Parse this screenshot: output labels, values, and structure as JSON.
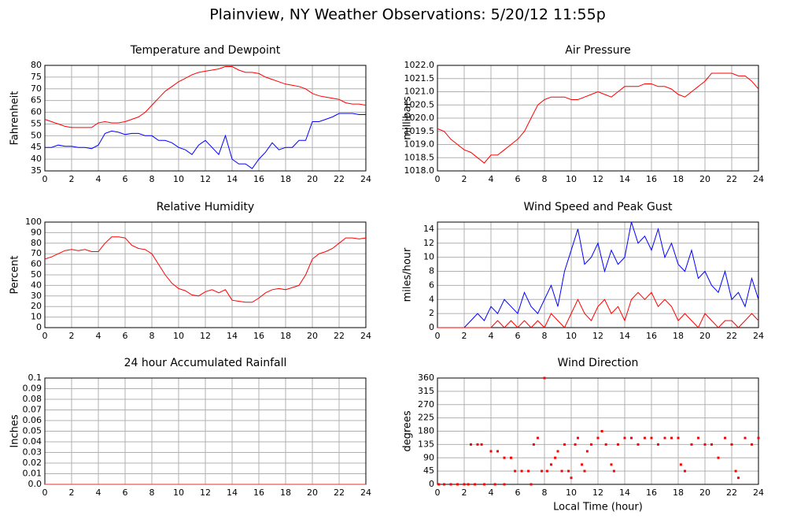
{
  "title": "Plainview, NY Weather Observations: 5/20/12 11:55p",
  "chart_data": [
    {
      "type": "line",
      "title": "Temperature and Dewpoint",
      "ylabel": "Fahrenheit",
      "x": [
        0,
        0.5,
        1,
        1.5,
        2,
        2.5,
        3,
        3.5,
        4,
        4.5,
        5,
        5.5,
        6,
        6.5,
        7,
        7.5,
        8,
        8.5,
        9,
        9.5,
        10,
        10.5,
        11,
        11.5,
        12,
        12.5,
        13,
        13.5,
        14,
        14.5,
        15,
        15.5,
        16,
        16.5,
        17,
        17.5,
        18,
        18.5,
        19,
        19.5,
        20,
        20.5,
        21,
        21.5,
        22,
        22.5,
        23,
        23.5,
        24
      ],
      "series": [
        {
          "color": "#ff0000",
          "values": [
            57,
            56,
            55,
            54,
            53.5,
            53.5,
            53.5,
            53.5,
            55.5,
            56,
            55.5,
            55.5,
            56,
            57,
            58,
            60,
            63,
            66,
            69,
            71,
            73,
            74.5,
            76,
            77,
            77.5,
            78,
            78.5,
            79.5,
            79.5,
            78,
            77,
            77,
            76.5,
            75,
            74,
            73,
            72,
            71.5,
            71,
            70,
            68,
            67,
            66.5,
            66,
            65.5,
            64,
            63.5,
            63.5,
            63
          ]
        },
        {
          "color": "#0000ff",
          "values": [
            45,
            45,
            46,
            45.5,
            45.5,
            45,
            45,
            44.5,
            46,
            51,
            52,
            51.5,
            50.5,
            51,
            51,
            50,
            50,
            48,
            48,
            47,
            45,
            44,
            42,
            46,
            48,
            45,
            42,
            50,
            40,
            38,
            38,
            36,
            40,
            43,
            47,
            44,
            45,
            45,
            48,
            48,
            56,
            56,
            57,
            58,
            59.5,
            59.5,
            59.5,
            59,
            59
          ]
        }
      ],
      "xlim": [
        0,
        24
      ],
      "xticks": [
        0,
        2,
        4,
        6,
        8,
        10,
        12,
        14,
        16,
        18,
        20,
        22,
        24
      ],
      "ylim": [
        35,
        80
      ],
      "yticks": [
        35,
        40,
        45,
        50,
        55,
        60,
        65,
        70,
        75,
        80
      ],
      "grid": true
    },
    {
      "type": "line",
      "title": "Air Pressure",
      "ylabel": "millibars",
      "x": [
        0,
        0.5,
        1,
        1.5,
        2,
        2.5,
        3,
        3.5,
        4,
        4.5,
        5,
        5.5,
        6,
        6.5,
        7,
        7.5,
        8,
        8.5,
        9,
        9.5,
        10,
        10.5,
        11,
        11.5,
        12,
        12.5,
        13,
        13.5,
        14,
        14.5,
        15,
        15.5,
        16,
        16.5,
        17,
        17.5,
        18,
        18.5,
        19,
        19.5,
        20,
        20.5,
        21,
        21.5,
        22,
        22.5,
        23,
        23.5,
        24
      ],
      "series": [
        {
          "color": "#ff0000",
          "values": [
            1019.6,
            1019.5,
            1019.2,
            1019.0,
            1018.8,
            1018.7,
            1018.5,
            1018.3,
            1018.6,
            1018.6,
            1018.8,
            1019.0,
            1019.2,
            1019.5,
            1020.0,
            1020.5,
            1020.7,
            1020.8,
            1020.8,
            1020.8,
            1020.7,
            1020.7,
            1020.8,
            1020.9,
            1021.0,
            1020.9,
            1020.8,
            1021.0,
            1021.2,
            1021.2,
            1021.2,
            1021.3,
            1021.3,
            1021.2,
            1021.2,
            1021.1,
            1020.9,
            1020.8,
            1021.0,
            1021.2,
            1021.4,
            1021.7,
            1021.7,
            1021.7,
            1021.7,
            1021.6,
            1021.6,
            1021.4,
            1021.1
          ]
        }
      ],
      "xlim": [
        0,
        24
      ],
      "xticks": [
        0,
        2,
        4,
        6,
        8,
        10,
        12,
        14,
        16,
        18,
        20,
        22,
        24
      ],
      "ylim": [
        1018,
        1022
      ],
      "yticks": [
        {
          "value": 1018,
          "label": "1018.0"
        },
        1018.5,
        {
          "value": 1019,
          "label": "1019.0"
        },
        1019.5,
        {
          "value": 1020,
          "label": "1020.0"
        },
        1020.5,
        {
          "value": 1021,
          "label": "1021.0"
        },
        1021.5,
        {
          "value": 1022,
          "label": "1022.0"
        }
      ],
      "grid": true
    },
    {
      "type": "line",
      "title": "Relative Humidity",
      "ylabel": "Percent",
      "x": [
        0,
        0.5,
        1,
        1.5,
        2,
        2.5,
        3,
        3.5,
        4,
        4.5,
        5,
        5.5,
        6,
        6.5,
        7,
        7.5,
        8,
        8.5,
        9,
        9.5,
        10,
        10.5,
        11,
        11.5,
        12,
        12.5,
        13,
        13.5,
        14,
        14.5,
        15,
        15.5,
        16,
        16.5,
        17,
        17.5,
        18,
        18.5,
        19,
        19.5,
        20,
        20.5,
        21,
        21.5,
        22,
        22.5,
        23,
        23.5,
        24
      ],
      "series": [
        {
          "color": "#ff0000",
          "values": [
            65,
            67,
            70,
            73,
            74,
            73,
            74,
            72,
            72,
            80,
            86,
            86,
            85,
            78,
            75,
            74,
            70,
            60,
            50,
            42,
            37,
            35,
            31,
            30,
            34,
            36,
            33,
            36,
            26,
            25,
            24,
            24,
            28,
            33,
            36,
            37,
            36,
            38,
            40,
            50,
            65,
            70,
            72,
            75,
            80,
            85,
            85,
            84,
            85
          ]
        }
      ],
      "xlim": [
        0,
        24
      ],
      "xticks": [
        0,
        2,
        4,
        6,
        8,
        10,
        12,
        14,
        16,
        18,
        20,
        22,
        24
      ],
      "ylim": [
        0,
        100
      ],
      "yticks": [
        0,
        10,
        20,
        30,
        40,
        50,
        60,
        70,
        80,
        90,
        100
      ],
      "grid": true
    },
    {
      "type": "line",
      "title": "Wind Speed and Peak Gust",
      "ylabel": "miles/hour",
      "x": [
        0,
        0.5,
        1,
        1.5,
        2,
        2.5,
        3,
        3.5,
        4,
        4.5,
        5,
        5.5,
        6,
        6.5,
        7,
        7.5,
        8,
        8.5,
        9,
        9.5,
        10,
        10.5,
        11,
        11.5,
        12,
        12.5,
        13,
        13.5,
        14,
        14.5,
        15,
        15.5,
        16,
        16.5,
        17,
        17.5,
        18,
        18.5,
        19,
        19.5,
        20,
        20.5,
        21,
        21.5,
        22,
        22.5,
        23,
        23.5,
        24
      ],
      "series": [
        {
          "color": "#0000ff",
          "values": [
            0,
            0,
            0,
            0,
            0,
            1,
            2,
            1,
            3,
            2,
            4,
            3,
            2,
            5,
            3,
            2,
            4,
            6,
            3,
            8,
            11,
            14,
            9,
            10,
            12,
            8,
            11,
            9,
            10,
            15,
            12,
            13,
            11,
            14,
            10,
            12,
            9,
            8,
            11,
            7,
            8,
            6,
            5,
            8,
            4,
            5,
            3,
            7,
            4
          ]
        },
        {
          "color": "#ff0000",
          "values": [
            0,
            0,
            0,
            0,
            0,
            0,
            0,
            0,
            0,
            1,
            0,
            1,
            0,
            1,
            0,
            1,
            0,
            2,
            1,
            0,
            2,
            4,
            2,
            1,
            3,
            4,
            2,
            3,
            1,
            4,
            5,
            4,
            5,
            3,
            4,
            3,
            1,
            2,
            1,
            0,
            2,
            1,
            0,
            1,
            1,
            0,
            1,
            2,
            1
          ]
        }
      ],
      "xlim": [
        0,
        24
      ],
      "xticks": [
        0,
        2,
        4,
        6,
        8,
        10,
        12,
        14,
        16,
        18,
        20,
        22,
        24
      ],
      "ylim": [
        0,
        15
      ],
      "yticks": [
        0,
        2,
        4,
        6,
        8,
        10,
        12,
        14
      ],
      "grid": true
    },
    {
      "type": "line",
      "title": "24 hour Accumulated Rainfall",
      "ylabel": "Inches",
      "x": [
        0,
        24
      ],
      "series": [
        {
          "color": "#e03030",
          "values": [
            0,
            0
          ]
        }
      ],
      "xlim": [
        0,
        24
      ],
      "xticks": [
        0,
        2,
        4,
        6,
        8,
        10,
        12,
        14,
        16,
        18,
        20,
        22,
        24
      ],
      "ylim": [
        0,
        0.1
      ],
      "yticks": [
        {
          "value": 0,
          "label": "0.0"
        },
        0.01,
        0.02,
        0.03,
        0.04,
        0.05,
        0.06,
        0.07,
        0.08,
        0.09,
        0.1
      ],
      "grid": true
    },
    {
      "type": "scatter",
      "title": "Wind Direction",
      "ylabel": "degrees",
      "xlabel": "Local Time (hour)",
      "x": [
        0.1,
        0.5,
        1,
        1.5,
        2,
        2.3,
        2.5,
        3,
        3.3,
        2.8,
        3.5,
        4,
        4.5,
        5,
        5.5,
        4.3,
        5,
        5.8,
        6.3,
        6.8,
        7,
        7.2,
        7.5,
        8,
        7.8,
        8.2,
        8.5,
        8.8,
        9,
        9.3,
        9.5,
        9.8,
        10,
        10.3,
        10.5,
        10.8,
        11,
        11.2,
        11.5,
        12,
        12.3,
        12.6,
        13,
        13.2,
        13.5,
        14,
        14.5,
        15,
        15.5,
        16,
        16.5,
        17,
        17.5,
        18,
        18.2,
        18.5,
        19,
        19.5,
        20,
        20.5,
        21,
        21.5,
        22,
        22.3,
        22.5,
        23,
        23.5,
        24
      ],
      "values": [
        0,
        0,
        0,
        0,
        0,
        0,
        135,
        135,
        135,
        0,
        0,
        112,
        112,
        90,
        90,
        0,
        0,
        45,
        45,
        45,
        0,
        135,
        157,
        360,
        45,
        45,
        67,
        90,
        112,
        45,
        135,
        45,
        22,
        135,
        157,
        67,
        45,
        112,
        135,
        157,
        180,
        135,
        67,
        45,
        135,
        157,
        157,
        135,
        157,
        157,
        135,
        157,
        157,
        157,
        67,
        45,
        135,
        157,
        135,
        135,
        90,
        157,
        135,
        45,
        22,
        157,
        135,
        157
      ],
      "color": "#ff0000",
      "xlim": [
        0,
        24
      ],
      "xticks": [
        0,
        2,
        4,
        6,
        8,
        10,
        12,
        14,
        16,
        18,
        20,
        22,
        24
      ],
      "ylim": [
        0,
        360
      ],
      "yticks": [
        0,
        45,
        90,
        135,
        180,
        225,
        270,
        315,
        360
      ],
      "grid": true
    }
  ]
}
